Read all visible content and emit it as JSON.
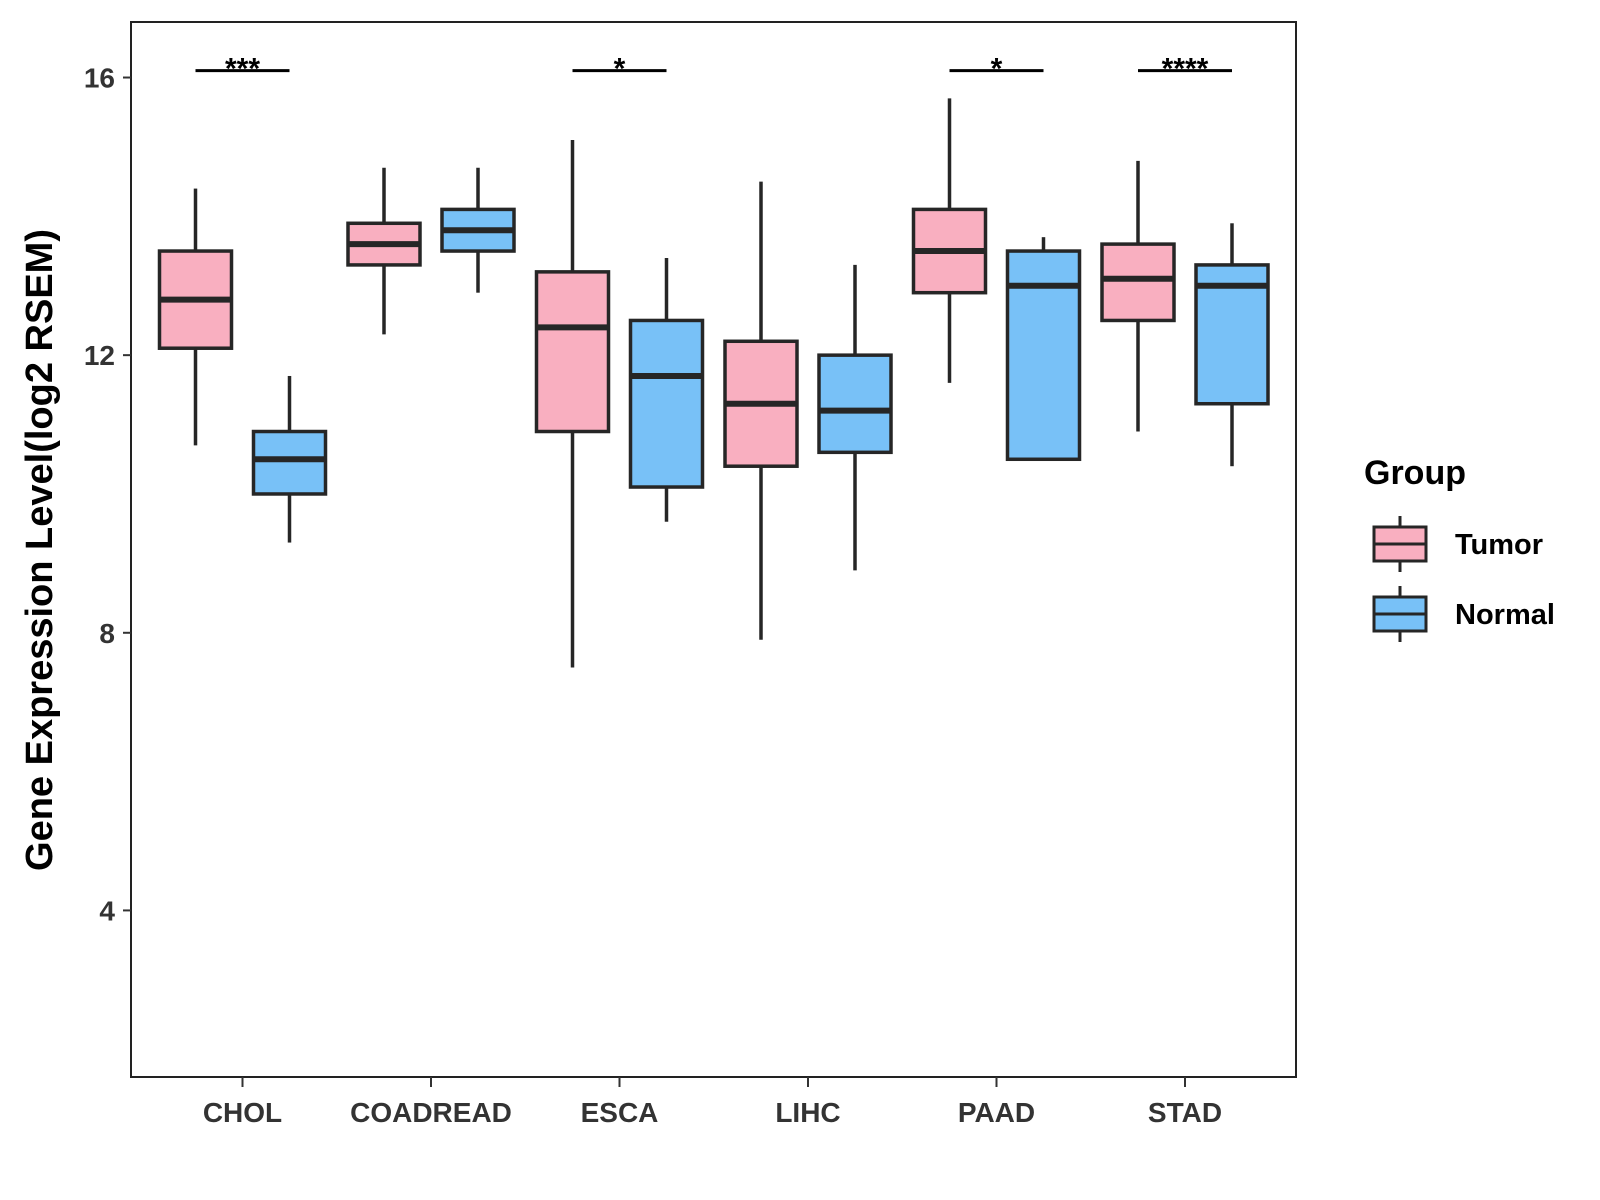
{
  "chart_data": {
    "type": "boxplot",
    "title": "",
    "xlabel": "",
    "ylabel": "Gene Expression Level(log2 RSEM)",
    "ylim": [
      1.6,
      16.8
    ],
    "yticks": [
      4,
      8,
      12,
      16
    ],
    "categories": [
      "CHOL",
      "COADREAD",
      "ESCA",
      "LIHC",
      "PAAD",
      "STAD"
    ],
    "legend": {
      "title": "Group",
      "position": "right"
    },
    "series": [
      {
        "name": "Tumor",
        "color": "#F9AFC0",
        "boxes": [
          {
            "category": "CHOL",
            "whisker_low": 10.7,
            "q1": 12.1,
            "median": 12.8,
            "q3": 13.5,
            "whisker_high": 14.4
          },
          {
            "category": "COADREAD",
            "whisker_low": 12.3,
            "q1": 13.3,
            "median": 13.6,
            "q3": 13.9,
            "whisker_high": 14.7
          },
          {
            "category": "ESCA",
            "whisker_low": 7.5,
            "q1": 10.9,
            "median": 12.4,
            "q3": 13.2,
            "whisker_high": 15.1
          },
          {
            "category": "LIHC",
            "whisker_low": 7.9,
            "q1": 10.4,
            "median": 11.3,
            "q3": 12.2,
            "whisker_high": 14.5
          },
          {
            "category": "PAAD",
            "whisker_low": 11.6,
            "q1": 12.9,
            "median": 13.5,
            "q3": 14.1,
            "whisker_high": 15.7
          },
          {
            "category": "STAD",
            "whisker_low": 10.9,
            "q1": 12.5,
            "median": 13.1,
            "q3": 13.6,
            "whisker_high": 14.8
          }
        ]
      },
      {
        "name": "Normal",
        "color": "#78C1F7",
        "boxes": [
          {
            "category": "CHOL",
            "whisker_low": 9.3,
            "q1": 10.0,
            "median": 10.5,
            "q3": 10.9,
            "whisker_high": 11.7
          },
          {
            "category": "COADREAD",
            "whisker_low": 12.9,
            "q1": 13.5,
            "median": 13.8,
            "q3": 14.1,
            "whisker_high": 14.7
          },
          {
            "category": "ESCA",
            "whisker_low": 9.6,
            "q1": 10.1,
            "median": 11.7,
            "q3": 12.5,
            "whisker_high": 13.4
          },
          {
            "category": "LIHC",
            "whisker_low": 8.9,
            "q1": 10.6,
            "median": 11.2,
            "q3": 12.0,
            "whisker_high": 13.3
          },
          {
            "category": "PAAD",
            "whisker_low": 10.5,
            "q1": 10.5,
            "median": 13.0,
            "q3": 13.5,
            "whisker_high": 13.7
          },
          {
            "category": "STAD",
            "whisker_low": 10.4,
            "q1": 11.3,
            "median": 13.0,
            "q3": 13.3,
            "whisker_high": 13.9
          }
        ]
      }
    ],
    "significance": [
      {
        "category": "CHOL",
        "label": "***",
        "y": 16.1
      },
      {
        "category": "ESCA",
        "label": "*",
        "y": 16.1
      },
      {
        "category": "PAAD",
        "label": "*",
        "y": 16.1
      },
      {
        "category": "STAD",
        "label": "****",
        "y": 16.1
      }
    ]
  }
}
